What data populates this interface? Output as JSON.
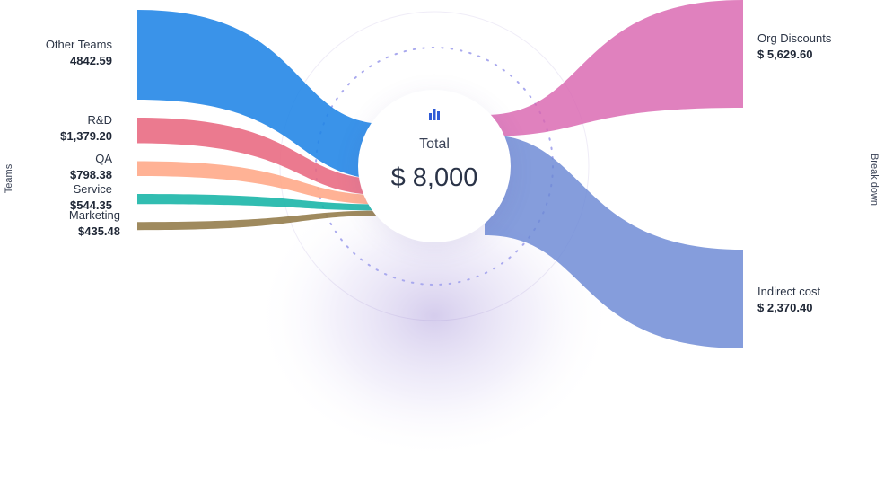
{
  "chart_data": {
    "type": "sankey",
    "left_axis_title": "Teams",
    "right_axis_title": "Break down",
    "center": {
      "label": "Total",
      "value": "$ 8,000",
      "icon": "bar-chart-icon"
    },
    "sources": [
      {
        "name": "Other Teams",
        "value": 4842.59,
        "display": "4842.59",
        "color": "#1f84e6"
      },
      {
        "name": "R&D",
        "value": 1379.2,
        "display": "$1,379.20",
        "color": "#e8687f"
      },
      {
        "name": "QA",
        "value": 798.38,
        "display": "$798.38",
        "color": "#ffa786"
      },
      {
        "name": "Service",
        "value": 544.35,
        "display": "$544.35",
        "color": "#14b4a6"
      },
      {
        "name": "Marketing",
        "value": 435.48,
        "display": "$435.48",
        "color": "#927a48"
      }
    ],
    "targets": [
      {
        "name": "Org Discounts",
        "value": 5629.6,
        "display": "$ 5,629.60",
        "color": "#d965b0"
      },
      {
        "name": "Indirect cost",
        "value": 2370.4,
        "display": "$ 2,370.40",
        "color": "#6a87d4"
      }
    ]
  }
}
